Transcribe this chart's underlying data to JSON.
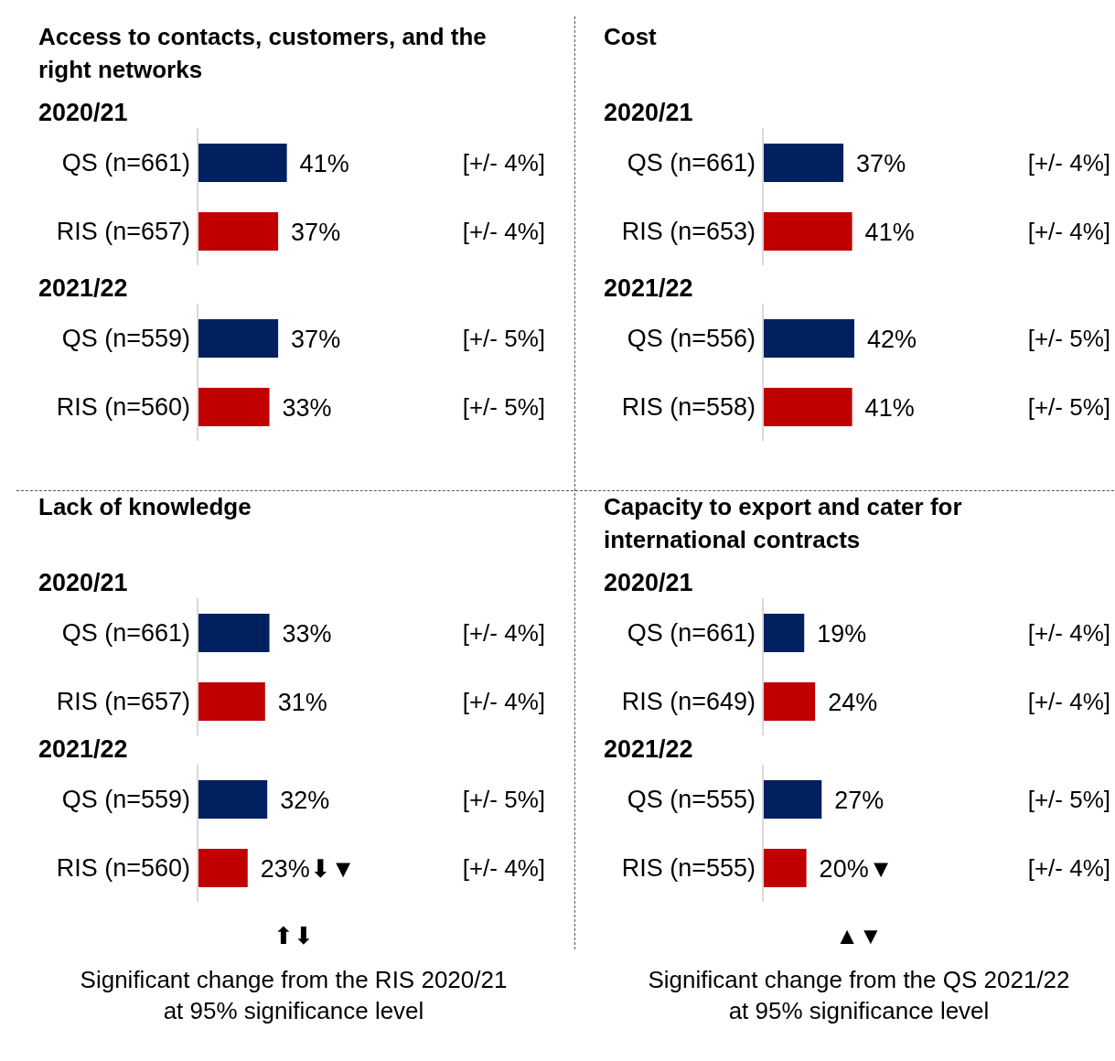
{
  "chart_data": [
    {
      "type": "bar",
      "orientation": "horizontal",
      "title": "Access to contacts, customers, and the right networks",
      "subtitle": "2020/21",
      "categories": [
        "QS (n=661)",
        "RIS (n=657)"
      ],
      "values": [
        41,
        37
      ],
      "colors": [
        "#002060",
        "#c00000"
      ],
      "value_labels": [
        "41%",
        "37%"
      ],
      "annotations": [
        "[+/- 4%]",
        "[+/- 4%]"
      ]
    },
    {
      "type": "bar",
      "orientation": "horizontal",
      "subtitle": "2021/22",
      "categories": [
        "QS (n=559)",
        "RIS (n=560)"
      ],
      "values": [
        37,
        33
      ],
      "colors": [
        "#002060",
        "#c00000"
      ],
      "value_labels": [
        "37%",
        "33%"
      ],
      "annotations": [
        "[+/- 5%]",
        "[+/- 5%]"
      ]
    },
    {
      "type": "bar",
      "orientation": "horizontal",
      "title": "Cost",
      "subtitle": "2020/21",
      "categories": [
        "QS (n=661)",
        "RIS (n=653)"
      ],
      "values": [
        37,
        41
      ],
      "colors": [
        "#002060",
        "#c00000"
      ],
      "value_labels": [
        "37%",
        "41%"
      ],
      "annotations": [
        "[+/- 4%]",
        "[+/- 4%]"
      ]
    },
    {
      "type": "bar",
      "orientation": "horizontal",
      "subtitle": "2021/22",
      "categories": [
        "QS (n=556)",
        "RIS (n=558)"
      ],
      "values": [
        42,
        41
      ],
      "colors": [
        "#002060",
        "#c00000"
      ],
      "value_labels": [
        "42%",
        "41%"
      ],
      "annotations": [
        "[+/- 5%]",
        "[+/- 5%]"
      ]
    },
    {
      "type": "bar",
      "orientation": "horizontal",
      "title": "Lack of knowledge",
      "subtitle": "2020/21",
      "categories": [
        "QS (n=661)",
        "RIS (n=657)"
      ],
      "values": [
        33,
        31
      ],
      "colors": [
        "#002060",
        "#c00000"
      ],
      "value_labels": [
        "33%",
        "31%"
      ],
      "annotations": [
        "[+/- 4%]",
        "[+/- 4%]"
      ]
    },
    {
      "type": "bar",
      "orientation": "horizontal",
      "subtitle": "2021/22",
      "categories": [
        "QS (n=559)",
        "RIS (n=560)"
      ],
      "values": [
        32,
        23
      ],
      "colors": [
        "#002060",
        "#c00000"
      ],
      "value_labels": [
        "32%",
        "23%⬇▼"
      ],
      "annotations": [
        "[+/- 5%]",
        "[+/- 4%]",
        "⬆⬇",
        "Significant change from the RIS 2020/21 at 95% significance level"
      ]
    },
    {
      "type": "bar",
      "orientation": "horizontal",
      "title": "Capacity to export and cater for international contracts",
      "subtitle": "2020/21",
      "categories": [
        "QS (n=661)",
        "RIS (n=649)"
      ],
      "values": [
        19,
        24
      ],
      "colors": [
        "#002060",
        "#c00000"
      ],
      "value_labels": [
        "19%",
        "24%"
      ],
      "annotations": [
        "[+/- 4%]",
        "[+/- 4%]"
      ]
    },
    {
      "type": "bar",
      "orientation": "horizontal",
      "subtitle": "2021/22",
      "categories": [
        "QS (n=555)",
        "RIS (n=555)"
      ],
      "values": [
        27,
        20
      ],
      "colors": [
        "#002060",
        "#c00000"
      ],
      "value_labels": [
        "27%",
        "20%▼"
      ],
      "annotations": [
        "[+/- 5%]",
        "[+/- 4%]",
        "▲▼",
        "Significant change from the QS 2021/22 at 95% significance level"
      ]
    }
  ]
}
